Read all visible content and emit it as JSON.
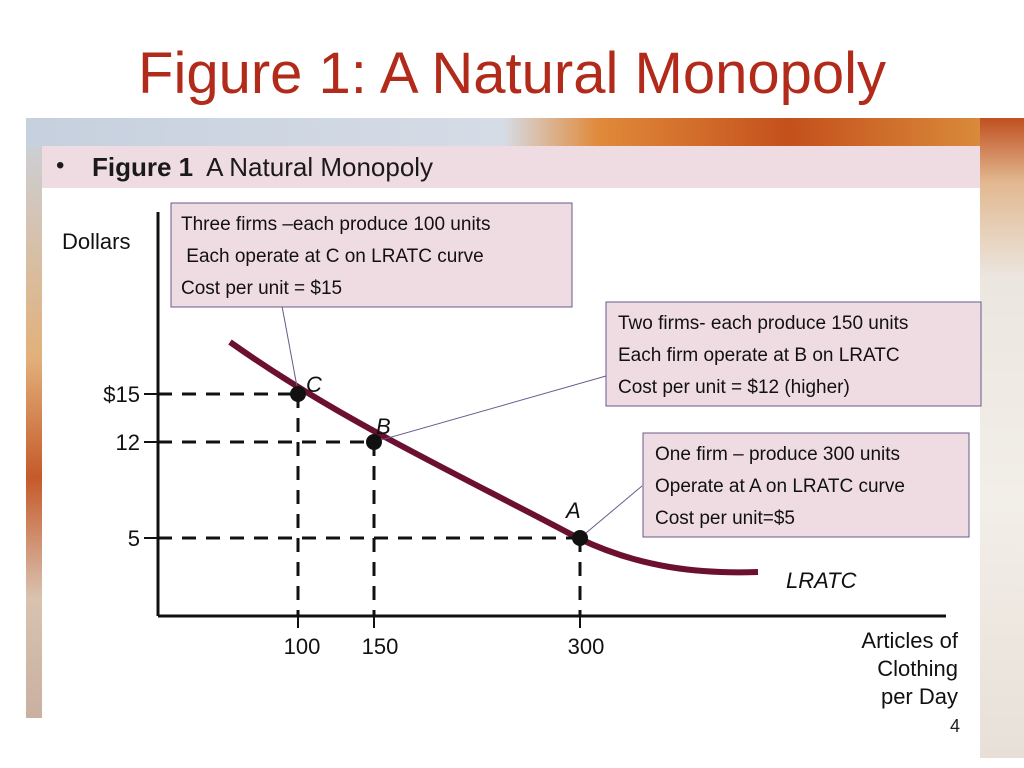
{
  "slide": {
    "title": "Figure 1:  A Natural Monopoly",
    "banner_bullet": "•",
    "banner_bold": "Figure 1",
    "banner_text": "  A Natural Monopoly",
    "page_number": "4"
  },
  "colors": {
    "title": "#b22a1a",
    "curve": "#6b1030",
    "callout_bg": "#efdce3",
    "callout_border": "#6a5a8a"
  },
  "chart_data": {
    "type": "line",
    "ylabel": "Dollars",
    "xlabel_lines": [
      "Articles of",
      "Clothing",
      "per Day"
    ],
    "curve_label": "LRATC",
    "x_ticks": [
      "100",
      "150",
      "300"
    ],
    "y_ticks": [
      "$15",
      "12",
      "5"
    ],
    "points": [
      {
        "label": "C",
        "x": 100,
        "y": 15
      },
      {
        "label": "B",
        "x": 150,
        "y": 12
      },
      {
        "label": "A",
        "x": 300,
        "y": 5
      }
    ],
    "callouts": [
      {
        "target": "C",
        "lines": [
          "Three firms –each produce 100 units",
          " Each operate at C on LRATC curve",
          "Cost per unit = $15"
        ]
      },
      {
        "target": "B",
        "lines": [
          "Two firms- each produce 150 units",
          "Each firm operate at B on LRATC",
          "Cost per unit = $12 (higher)"
        ]
      },
      {
        "target": "A",
        "lines": [
          "One firm – produce 300 units",
          "Operate at A on LRATC curve",
          "Cost per unit=$5"
        ]
      }
    ]
  }
}
